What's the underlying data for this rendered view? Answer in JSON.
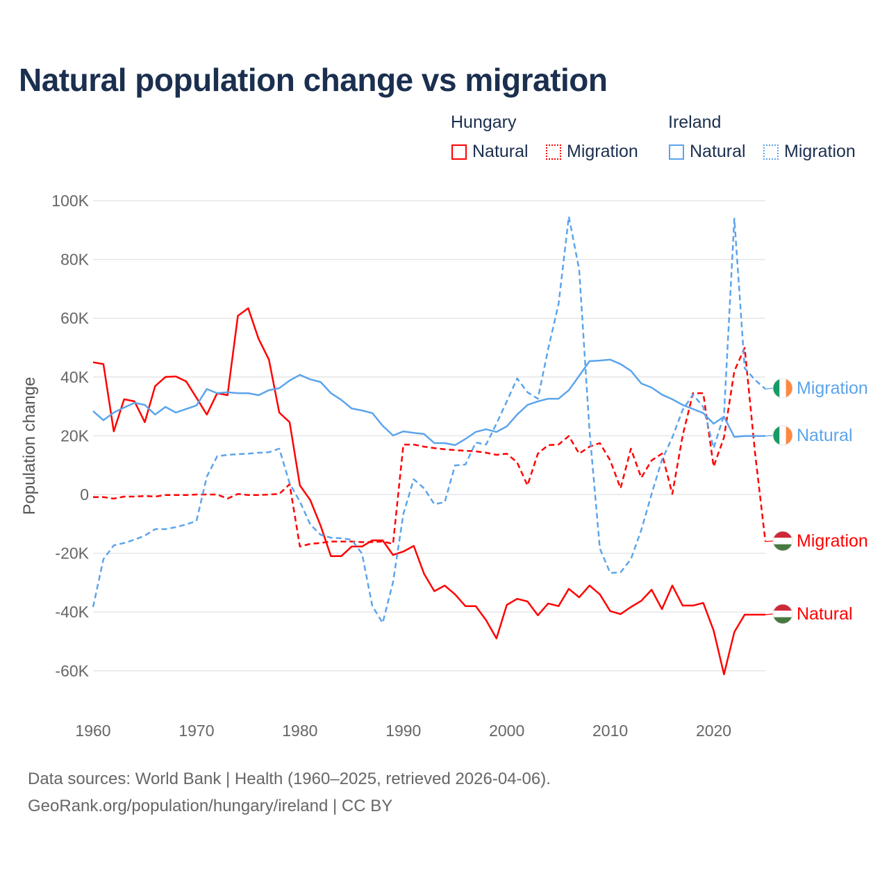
{
  "title": "Natural population change vs migration",
  "legend": {
    "groups": [
      {
        "name": "Hungary",
        "items": [
          "Natural",
          "Migration"
        ],
        "color": "#ff0000"
      },
      {
        "name": "Ireland",
        "items": [
          "Natural",
          "Migration"
        ],
        "color": "#5ba4ec"
      }
    ]
  },
  "footer": {
    "line1": "Data sources: World Bank | Health (1960–2025, retrieved 2026-04-06).",
    "line2": "GeoRank.org/population/hungary/ireland | CC BY"
  },
  "chart_data": {
    "type": "line",
    "title": "Natural population change vs migration",
    "xlabel": "",
    "ylabel": "Population change",
    "xlim": [
      1960,
      2025
    ],
    "ylim": [
      -70000,
      100000
    ],
    "x_ticks": [
      1960,
      1970,
      1980,
      1990,
      2000,
      2010,
      2020
    ],
    "x_tick_labels": [
      "1960",
      "1970",
      "1980",
      "1990",
      "2000",
      "2010",
      "2020"
    ],
    "y_ticks": [
      100000,
      80000,
      60000,
      40000,
      20000,
      0,
      -20000,
      -40000,
      -60000
    ],
    "y_tick_labels": [
      "100K",
      "80K",
      "60K",
      "40K",
      "20K",
      "0",
      "-20K",
      "-40K",
      "-60K"
    ],
    "grid": true,
    "legend_position": "top-right",
    "x_start": 1960,
    "series": [
      {
        "name": "Hungary Natural",
        "country": "Hungary",
        "kind": "Natural",
        "end_label": "Natural",
        "color": "#ff0000",
        "dashed": false,
        "flag": "hungary",
        "values": [
          45000,
          44400,
          21500,
          32400,
          31700,
          24600,
          36900,
          40000,
          40200,
          38500,
          32900,
          27200,
          34500,
          33800,
          60800,
          63400,
          53000,
          45900,
          27900,
          24600,
          3100,
          -1900,
          -10600,
          -21000,
          -21000,
          -17700,
          -17700,
          -15600,
          -15600,
          -20600,
          -19400,
          -17500,
          -27000,
          -32900,
          -31000,
          -34000,
          -38000,
          -38000,
          -42800,
          -49000,
          -37600,
          -35500,
          -36400,
          -41100,
          -37100,
          -38000,
          -32100,
          -35000,
          -31000,
          -34000,
          -39700,
          -40700,
          -38300,
          -36200,
          -32400,
          -39000,
          -31000,
          -37800,
          -37800,
          -36900,
          -46300,
          -61200,
          -46800,
          -40900,
          -40900,
          -40900
        ]
      },
      {
        "name": "Hungary Migration",
        "country": "Hungary",
        "kind": "Migration",
        "end_label": "Migration",
        "color": "#ff0000",
        "dashed": true,
        "flag": "hungary",
        "values": [
          -900,
          -900,
          -1400,
          -700,
          -700,
          -500,
          -700,
          -200,
          -200,
          -200,
          0,
          0,
          0,
          -1400,
          200,
          -200,
          -200,
          0,
          200,
          3500,
          -17700,
          -16800,
          -16500,
          -16000,
          -16000,
          -16000,
          -16200,
          -16200,
          -16000,
          -16800,
          17000,
          17000,
          16300,
          15800,
          15400,
          15100,
          14900,
          14700,
          14200,
          13500,
          13900,
          10900,
          3100,
          13900,
          16800,
          17000,
          19900,
          13900,
          16300,
          17500,
          11600,
          2100,
          15600,
          5700,
          11600,
          13900,
          200,
          20100,
          34500,
          34500,
          9500,
          19400,
          42000,
          49900,
          14200,
          -16000
        ]
      },
      {
        "name": "Ireland Natural",
        "country": "Ireland",
        "kind": "Natural",
        "end_label": "Natural",
        "color": "#5ba4ec",
        "dashed": false,
        "flag": "ireland",
        "values": [
          28400,
          25300,
          27900,
          29600,
          31200,
          30500,
          27200,
          29800,
          27900,
          29100,
          30300,
          35900,
          34500,
          34800,
          34500,
          34500,
          33800,
          35500,
          36200,
          38800,
          40700,
          39200,
          38300,
          34500,
          32200,
          29300,
          28600,
          27700,
          23400,
          20100,
          21500,
          21000,
          20600,
          17500,
          17500,
          16800,
          18900,
          21300,
          22200,
          21300,
          23200,
          27200,
          30500,
          31700,
          32600,
          32600,
          35500,
          40400,
          45400,
          45600,
          45900,
          44400,
          42100,
          37800,
          36400,
          34000,
          32400,
          30500,
          29100,
          27700,
          24100,
          26500,
          19600,
          19900,
          19900,
          19900
        ]
      },
      {
        "name": "Ireland Migration",
        "country": "Ireland",
        "kind": "Migration",
        "end_label": "Migration",
        "color": "#5ba4ec",
        "dashed": true,
        "flag": "ireland",
        "values": [
          -38300,
          -22000,
          -17300,
          -16500,
          -15400,
          -14000,
          -11800,
          -11800,
          -11100,
          -10200,
          -9000,
          6100,
          13000,
          13500,
          13700,
          13900,
          14200,
          14400,
          15600,
          3800,
          -2400,
          -10200,
          -13700,
          -14700,
          -14900,
          -15400,
          -20100,
          -38000,
          -43700,
          -29800,
          -6600,
          5200,
          2100,
          -3300,
          -2600,
          9900,
          10200,
          17700,
          17000,
          24100,
          31700,
          39500,
          34800,
          32600,
          49600,
          64800,
          94600,
          76600,
          21700,
          -18400,
          -26700,
          -26500,
          -22000,
          -12100,
          200,
          11800,
          19400,
          28800,
          34000,
          29800,
          15800,
          27000,
          93900,
          43000,
          39000,
          35900
        ]
      }
    ]
  }
}
